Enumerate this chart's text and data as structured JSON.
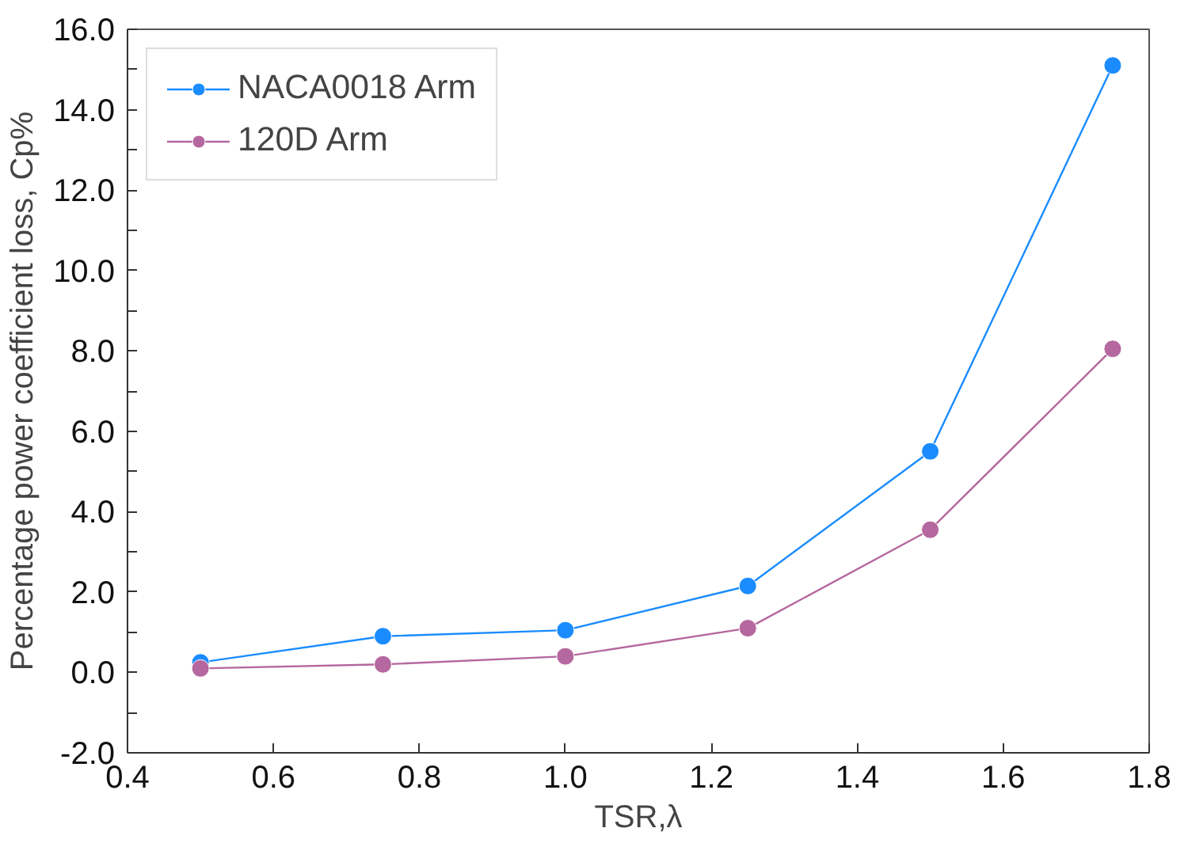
{
  "chart_data": {
    "type": "line",
    "xlabel": "TSR,λ",
    "ylabel": "Percentage power coefficient loss, Cp%",
    "x": [
      0.5,
      0.75,
      1.0,
      1.25,
      1.5,
      1.75
    ],
    "series": [
      {
        "name": "NACA0018 Arm",
        "color": "#1a8cff",
        "values": [
          0.25,
          0.9,
          1.05,
          2.15,
          5.5,
          15.1
        ]
      },
      {
        "name": "120D Arm",
        "color": "#b5679f",
        "values": [
          0.1,
          0.2,
          0.4,
          1.1,
          3.55,
          8.05
        ]
      }
    ],
    "xlim": [
      0.4,
      1.8
    ],
    "xticks": [
      0.4,
      0.6,
      0.8,
      {
        "value": 1.0,
        "label": "1.0"
      },
      1.2,
      1.4,
      1.6,
      1.8
    ],
    "ylim": [
      -2,
      16
    ],
    "yticks": [
      {
        "value": -2,
        "label": "-2.0"
      },
      {
        "value": -1,
        "label": null
      },
      {
        "value": 0,
        "label": "0.0"
      },
      {
        "value": 1,
        "label": null
      },
      {
        "value": 2,
        "label": "2.0"
      },
      {
        "value": 3,
        "label": null
      },
      {
        "value": 4,
        "label": "4.0"
      },
      {
        "value": 5,
        "label": null
      },
      {
        "value": 6,
        "label": "6.0"
      },
      {
        "value": 7,
        "label": null
      },
      {
        "value": 8,
        "label": "8.0"
      },
      {
        "value": 9,
        "label": null
      },
      {
        "value": 10,
        "label": "10.0"
      },
      {
        "value": 11,
        "label": null
      },
      {
        "value": 12,
        "label": "12.0"
      },
      {
        "value": 13,
        "label": null
      },
      {
        "value": 14,
        "label": "14.0"
      },
      {
        "value": 15,
        "label": null
      },
      {
        "value": 16,
        "label": "16.0"
      }
    ],
    "grid": false,
    "legend": "top left",
    "marker": "circle",
    "line_style": "solid"
  }
}
